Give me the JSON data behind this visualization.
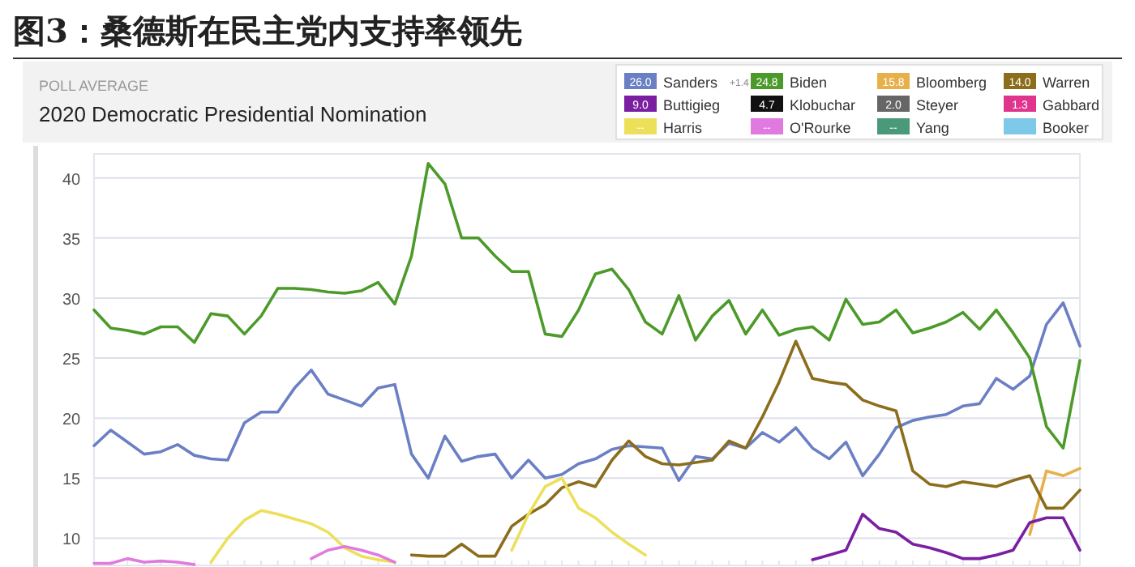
{
  "chart_data": {
    "type": "line",
    "title": "图3：桑德斯在民主党内支持率领先",
    "subtitle": "2020 Democratic Presidential Nomination",
    "annotations": [
      "POLL AVERAGE",
      "+1.4",
      "26.0",
      "24.8",
      "15.8",
      "14.0",
      "9.0",
      "4.7",
      "2.0",
      "1.3",
      "--",
      "--",
      "--"
    ],
    "categories": [
      null,
      null,
      null,
      null,
      null,
      null,
      null,
      null,
      null,
      null,
      null,
      null,
      null,
      null,
      null,
      null,
      null,
      null,
      null,
      null,
      null,
      null,
      null,
      null,
      null,
      null,
      null,
      null,
      null,
      null,
      null,
      null,
      null,
      null,
      null,
      null,
      null,
      null,
      null,
      null,
      null,
      null,
      null,
      null,
      null,
      null,
      null,
      null,
      null,
      null,
      null,
      null,
      null,
      null,
      null,
      null,
      null,
      null,
      null,
      null
    ],
    "ylim": [
      7.6,
      42
    ],
    "yticks": [
      10,
      15,
      20,
      25,
      30,
      35,
      40
    ],
    "grid": "y",
    "tick_labels": "y",
    "legend": "top right",
    "series": [
      {
        "name": "Sanders",
        "color": "#6b7fc4",
        "values": [
          17.7,
          19,
          18,
          17,
          17.2,
          17.8,
          16.9,
          16.6,
          16.5,
          19.6,
          20.5,
          20.5,
          22.5,
          24,
          22,
          21.5,
          21,
          22.5,
          22.8,
          17,
          15,
          18.5,
          16.4,
          16.8,
          17,
          15,
          16.5,
          15,
          15.3,
          16.2,
          16.6,
          17.4,
          17.7,
          17.6,
          17.5,
          14.8,
          16.8,
          16.6,
          17.9,
          17.5,
          18.8,
          18,
          19.2,
          17.5,
          16.6,
          18,
          15.2,
          17,
          19.2,
          19.8,
          20.1,
          20.3,
          21,
          21.2,
          23.3,
          22.4,
          23.5,
          27.8,
          29.6,
          26.0
        ]
      },
      {
        "name": "Biden",
        "color": "#4c9a2a",
        "values": [
          29,
          27.5,
          27.3,
          27,
          27.6,
          27.6,
          26.3,
          28.7,
          28.5,
          27,
          28.5,
          30.8,
          30.8,
          30.7,
          30.5,
          30.4,
          30.6,
          31.3,
          29.5,
          33.5,
          41.2,
          39.5,
          35,
          35,
          33.5,
          32.2,
          32.2,
          27,
          26.8,
          29,
          32,
          32.4,
          30.7,
          28,
          27,
          30.2,
          26.5,
          28.5,
          29.8,
          27,
          29,
          26.9,
          27.4,
          27.6,
          26.5,
          29.9,
          27.8,
          28,
          29,
          27.1,
          27.5,
          28,
          28.8,
          27.4,
          29,
          27.1,
          25,
          19.3,
          17.5,
          24.8
        ]
      },
      {
        "name": "Bloomberg",
        "color": "#e8b04a",
        "values": [
          null,
          null,
          null,
          null,
          null,
          null,
          null,
          null,
          null,
          null,
          null,
          null,
          null,
          null,
          null,
          null,
          null,
          null,
          null,
          null,
          null,
          null,
          null,
          null,
          null,
          null,
          null,
          null,
          null,
          null,
          null,
          null,
          null,
          null,
          null,
          null,
          null,
          null,
          null,
          null,
          null,
          null,
          null,
          null,
          null,
          null,
          null,
          null,
          null,
          null,
          null,
          null,
          null,
          null,
          null,
          null,
          10.3,
          15.6,
          15.2,
          15.8
        ]
      },
      {
        "name": "Warren",
        "color": "#8b6d1c",
        "values": [
          null,
          null,
          null,
          null,
          null,
          null,
          null,
          null,
          null,
          null,
          null,
          null,
          null,
          null,
          null,
          null,
          null,
          null,
          null,
          8.6,
          8.5,
          8.5,
          9.5,
          8.5,
          8.5,
          11,
          12,
          12.8,
          14.2,
          14.7,
          14.3,
          16.5,
          18.1,
          16.8,
          16.2,
          16.1,
          16.3,
          16.5,
          18.1,
          17.5,
          20.1,
          23,
          26.4,
          23.3,
          23,
          22.8,
          21.5,
          21,
          20.6,
          15.6,
          14.5,
          14.3,
          14.7,
          14.5,
          14.3,
          14.8,
          15.2,
          12.5,
          12.5,
          14.0
        ]
      },
      {
        "name": "Buttigieg",
        "color": "#7b1fa2",
        "values": [
          null,
          null,
          null,
          null,
          null,
          null,
          null,
          null,
          null,
          null,
          null,
          null,
          null,
          null,
          null,
          null,
          null,
          null,
          null,
          null,
          null,
          null,
          null,
          null,
          null,
          null,
          null,
          null,
          null,
          null,
          null,
          null,
          null,
          null,
          null,
          null,
          null,
          null,
          null,
          null,
          null,
          null,
          null,
          8.2,
          8.6,
          9,
          12,
          10.8,
          10.5,
          9.5,
          9.2,
          8.8,
          8.3,
          8.3,
          8.6,
          9,
          11.3,
          11.7,
          11.7,
          9.0
        ]
      },
      {
        "name": "Klobuchar",
        "color": "#111111",
        "values": [
          null,
          null,
          null,
          null,
          null,
          null,
          null,
          null,
          null,
          null,
          null,
          null,
          null,
          null,
          null,
          null,
          null,
          null,
          null,
          null,
          null,
          null,
          null,
          null,
          null,
          null,
          null,
          null,
          null,
          null,
          null,
          null,
          null,
          null,
          null,
          null,
          null,
          null,
          null,
          null,
          null,
          null,
          null,
          null,
          null,
          null,
          null,
          null,
          null,
          null,
          null,
          null,
          null,
          null,
          null,
          null,
          null,
          null,
          null,
          null
        ]
      },
      {
        "name": "Steyer",
        "color": "#666666",
        "values": [
          null,
          null,
          null,
          null,
          null,
          null,
          null,
          null,
          null,
          null,
          null,
          null,
          null,
          null,
          null,
          null,
          null,
          null,
          null,
          null,
          null,
          null,
          null,
          null,
          null,
          null,
          null,
          null,
          null,
          null,
          null,
          null,
          null,
          null,
          null,
          null,
          null,
          null,
          null,
          null,
          null,
          null,
          null,
          null,
          null,
          null,
          null,
          null,
          null,
          null,
          null,
          null,
          null,
          null,
          null,
          null,
          null,
          null,
          null,
          null
        ]
      },
      {
        "name": "Gabbard",
        "color": "#e0358c",
        "values": [
          null,
          null,
          null,
          null,
          null,
          null,
          null,
          null,
          null,
          null,
          null,
          null,
          null,
          null,
          null,
          null,
          null,
          null,
          null,
          null,
          null,
          null,
          null,
          null,
          null,
          null,
          null,
          null,
          null,
          null,
          null,
          null,
          null,
          null,
          null,
          null,
          null,
          null,
          null,
          null,
          null,
          null,
          null,
          null,
          null,
          null,
          null,
          null,
          null,
          null,
          null,
          null,
          null,
          null,
          null,
          null,
          null,
          null,
          null,
          null
        ]
      },
      {
        "name": "Harris",
        "color": "#ece05a",
        "values": [
          null,
          null,
          null,
          null,
          null,
          null,
          null,
          8,
          10,
          11.5,
          12.3,
          12,
          11.6,
          11.2,
          10.5,
          9.2,
          8.5,
          8.2,
          8,
          null,
          null,
          null,
          null,
          null,
          null,
          9,
          12,
          14.3,
          15,
          12.5,
          11.7,
          10.5,
          9.5,
          8.6,
          null,
          null,
          null,
          null,
          null,
          null,
          null,
          null,
          null,
          null,
          null,
          null,
          null,
          null,
          null,
          null,
          null,
          null,
          null,
          null,
          null,
          null,
          null,
          null,
          null,
          null
        ]
      },
      {
        "name": "O'Rourke",
        "color": "#e07ae0",
        "values": [
          7.9,
          7.9,
          8.3,
          8,
          8.1,
          8,
          7.8,
          null,
          null,
          null,
          null,
          null,
          null,
          8.3,
          9,
          9.3,
          9,
          8.6,
          8,
          null,
          null,
          null,
          null,
          null,
          null,
          null,
          null,
          null,
          null,
          null,
          null,
          null,
          null,
          null,
          null,
          null,
          null,
          null,
          null,
          null,
          null,
          null,
          null,
          null,
          null,
          null,
          null,
          null,
          null,
          null,
          null,
          null,
          null,
          null,
          null,
          null,
          null,
          null,
          null,
          null
        ]
      },
      {
        "name": "Yang",
        "color": "#4a9a7a",
        "values": [
          null,
          null,
          null,
          null,
          null,
          null,
          null,
          null,
          null,
          null,
          null,
          null,
          null,
          null,
          null,
          null,
          null,
          null,
          null,
          null,
          null,
          null,
          null,
          null,
          null,
          null,
          null,
          null,
          null,
          null,
          null,
          null,
          null,
          null,
          null,
          null,
          null,
          null,
          null,
          null,
          null,
          null,
          null,
          null,
          null,
          null,
          null,
          null,
          null,
          null,
          null,
          null,
          null,
          null,
          null,
          null,
          null,
          null,
          null,
          null
        ]
      },
      {
        "name": "Booker",
        "color": "#7ec8e8",
        "values": [
          null,
          null,
          null,
          null,
          null,
          null,
          null,
          null,
          null,
          null,
          null,
          null,
          null,
          null,
          null,
          null,
          null,
          null,
          null,
          null,
          null,
          null,
          null,
          null,
          null,
          null,
          null,
          null,
          null,
          null,
          null,
          null,
          null,
          null,
          null,
          null,
          null,
          null,
          null,
          null,
          null,
          null,
          null,
          null,
          null,
          null,
          null,
          null,
          null,
          null,
          null,
          null,
          null,
          null,
          null,
          null,
          null,
          null,
          null,
          null
        ]
      }
    ]
  }
}
